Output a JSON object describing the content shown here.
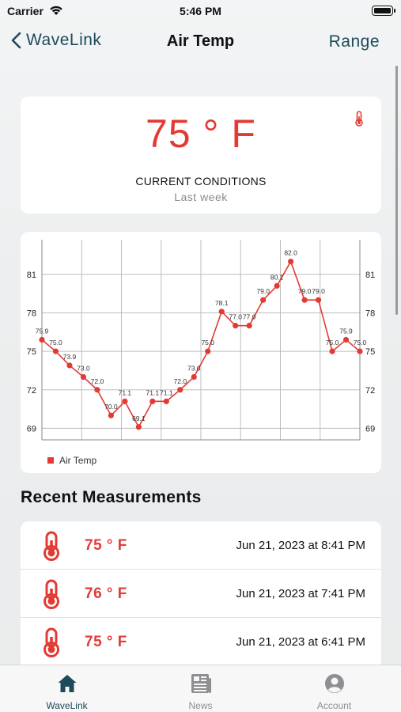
{
  "status": {
    "carrier": "Carrier",
    "time": "5:46 PM"
  },
  "nav": {
    "back_label": "WaveLink",
    "title": "Air Temp",
    "range_label": "Range"
  },
  "current": {
    "value": "75 ° F",
    "label": "CURRENT CONDITIONS",
    "period": "Last week"
  },
  "colors": {
    "accent": "#e23b35",
    "nav": "#1e4a5a",
    "tab_active": "#1e4a5a",
    "tab_inactive": "#8e8e93"
  },
  "chart_data": {
    "type": "line",
    "x": [
      0,
      1,
      2,
      3,
      4,
      5,
      6,
      7,
      8,
      9,
      10,
      11,
      12,
      13,
      14,
      15,
      16,
      17,
      18,
      19,
      20,
      21,
      22,
      23
    ],
    "series": [
      {
        "name": "Air Temp",
        "values": [
          75.9,
          75.0,
          73.9,
          73.0,
          72.0,
          70.0,
          71.1,
          69.1,
          71.1,
          71.1,
          72.0,
          73.0,
          75.0,
          78.1,
          77.0,
          77.0,
          79.0,
          80.1,
          82.0,
          79.0,
          79.0,
          75.0,
          75.9,
          75.0
        ],
        "labels": [
          "75.9",
          "75.0",
          "73.9",
          "73.0",
          "72.0",
          "70.0",
          "71.1",
          "69.1",
          "71.1",
          "71.1",
          "72.0",
          "73.0",
          "75.0",
          "78.1",
          "77.0",
          "77.0",
          "79.0",
          "80.1",
          "82.0",
          "79.0",
          "79.0",
          "75.0",
          "75.9",
          "75.0"
        ]
      }
    ],
    "y_ticks": [
      "69",
      "72",
      "75",
      "78",
      "81"
    ],
    "y_tick_values": [
      69,
      72,
      75,
      78,
      81
    ],
    "ylim": [
      68.1,
      83.7
    ],
    "grid": true,
    "legend": "bottom-left",
    "color": "#e23b35"
  },
  "section_title": "Recent Measurements",
  "measurements": [
    {
      "value": "75 ° F",
      "timestamp": "Jun 21, 2023 at 8:41 PM"
    },
    {
      "value": "76 ° F",
      "timestamp": "Jun 21, 2023 at 7:41 PM"
    },
    {
      "value": "75 ° F",
      "timestamp": "Jun 21, 2023 at 6:41 PM"
    }
  ],
  "tabs": [
    {
      "label": "WaveLink",
      "icon": "home-icon",
      "active": true
    },
    {
      "label": "News",
      "icon": "news-icon",
      "active": false
    },
    {
      "label": "Account",
      "icon": "account-icon",
      "active": false
    }
  ]
}
